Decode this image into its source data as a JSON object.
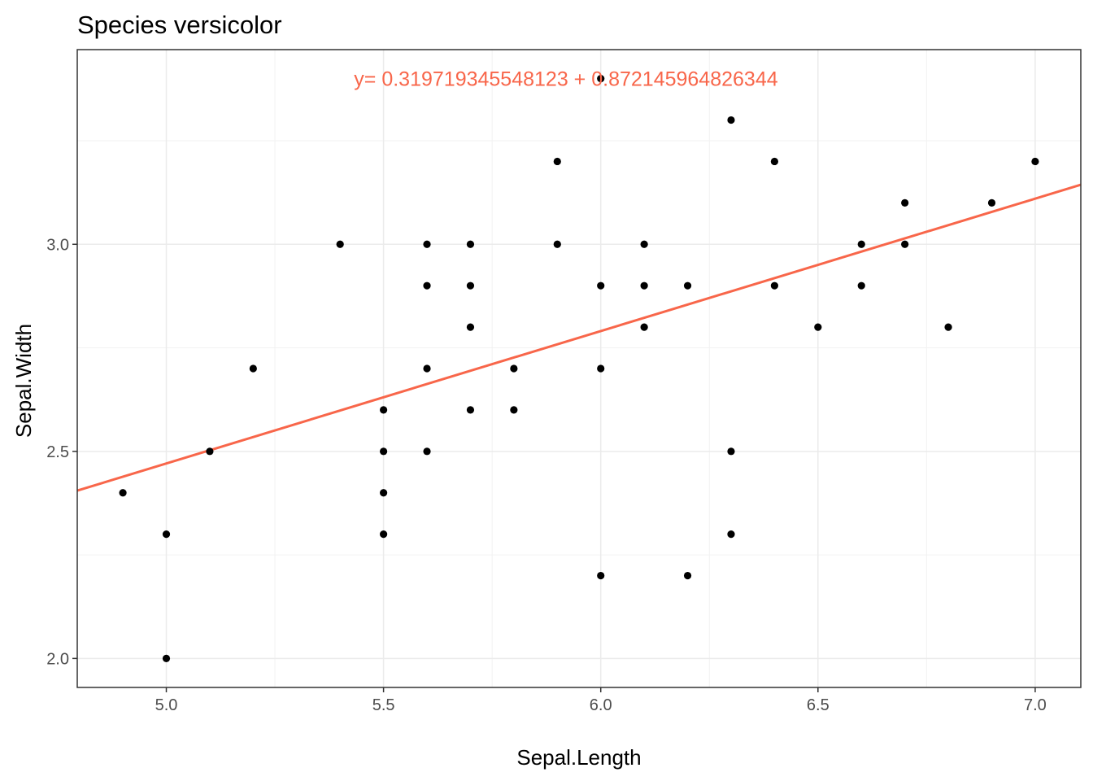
{
  "chart_data": {
    "type": "scatter",
    "title": "Species versicolor",
    "xlabel": "Sepal.Length",
    "ylabel": "Sepal.Width",
    "xlim": [
      4.795,
      7.105
    ],
    "ylim": [
      1.93,
      3.47
    ],
    "x_ticks": [
      5.0,
      5.5,
      6.0,
      6.5,
      7.0
    ],
    "x_tick_labels": [
      "5.0",
      "5.5",
      "6.0",
      "6.5",
      "7.0"
    ],
    "y_ticks": [
      2.0,
      2.5,
      3.0
    ],
    "y_tick_labels": [
      "2.0",
      "2.5",
      "3.0"
    ],
    "grid": true,
    "point_color": "#000000",
    "points": [
      {
        "x": 7.0,
        "y": 3.2
      },
      {
        "x": 6.4,
        "y": 3.2
      },
      {
        "x": 6.9,
        "y": 3.1
      },
      {
        "x": 5.5,
        "y": 2.3
      },
      {
        "x": 6.5,
        "y": 2.8
      },
      {
        "x": 5.7,
        "y": 2.8
      },
      {
        "x": 6.3,
        "y": 3.3
      },
      {
        "x": 4.9,
        "y": 2.4
      },
      {
        "x": 6.6,
        "y": 2.9
      },
      {
        "x": 5.2,
        "y": 2.7
      },
      {
        "x": 5.0,
        "y": 2.0
      },
      {
        "x": 5.9,
        "y": 3.0
      },
      {
        "x": 6.0,
        "y": 2.2
      },
      {
        "x": 6.1,
        "y": 2.9
      },
      {
        "x": 5.6,
        "y": 2.9
      },
      {
        "x": 6.7,
        "y": 3.1
      },
      {
        "x": 5.6,
        "y": 3.0
      },
      {
        "x": 5.8,
        "y": 2.7
      },
      {
        "x": 6.2,
        "y": 2.2
      },
      {
        "x": 5.6,
        "y": 2.5
      },
      {
        "x": 5.9,
        "y": 3.2
      },
      {
        "x": 6.1,
        "y": 2.8
      },
      {
        "x": 6.3,
        "y": 2.5
      },
      {
        "x": 6.6,
        "y": 3.0
      },
      {
        "x": 6.8,
        "y": 2.8
      },
      {
        "x": 6.7,
        "y": 3.0
      },
      {
        "x": 6.0,
        "y": 2.9
      },
      {
        "x": 5.7,
        "y": 2.6
      },
      {
        "x": 5.5,
        "y": 2.4
      },
      {
        "x": 5.5,
        "y": 2.5
      },
      {
        "x": 6.0,
        "y": 2.7
      },
      {
        "x": 5.4,
        "y": 3.0
      },
      {
        "x": 6.0,
        "y": 3.4
      },
      {
        "x": 6.3,
        "y": 2.3
      },
      {
        "x": 5.6,
        "y": 2.7
      },
      {
        "x": 5.5,
        "y": 2.6
      },
      {
        "x": 5.8,
        "y": 2.6
      },
      {
        "x": 5.0,
        "y": 2.3
      },
      {
        "x": 5.7,
        "y": 3.0
      },
      {
        "x": 5.7,
        "y": 2.9
      },
      {
        "x": 6.2,
        "y": 2.9
      },
      {
        "x": 5.1,
        "y": 2.5
      },
      {
        "x": 6.1,
        "y": 3.0
      },
      {
        "x": 6.4,
        "y": 2.9
      }
    ],
    "regression": {
      "intercept": 0.8721459648263444,
      "slope": 0.3197193455481235,
      "color": "#f8664a"
    },
    "annotation": {
      "text": "y= 0.319719345548123 + 0.872145964826344",
      "x": 5.92,
      "y": 3.4,
      "color": "#f8664a"
    }
  }
}
